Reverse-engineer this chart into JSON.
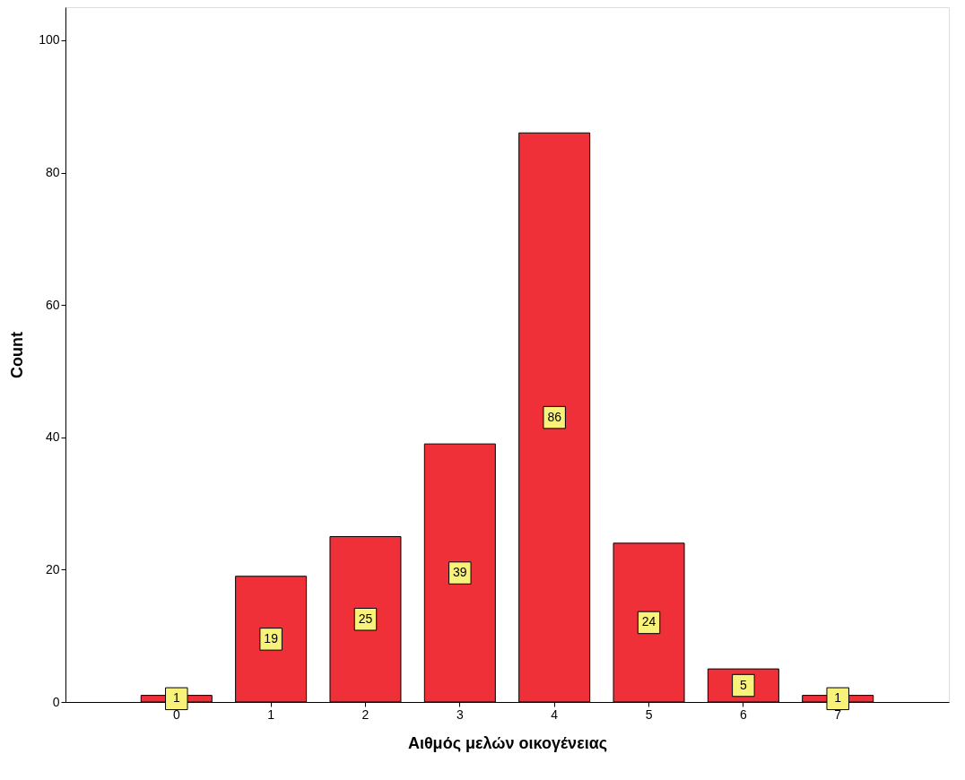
{
  "chart_data": {
    "type": "bar",
    "xlabel": "Αιθμός μελών οικογένειας",
    "ylabel": "Count",
    "categories": [
      "0",
      "1",
      "2",
      "3",
      "4",
      "5",
      "6",
      "7"
    ],
    "values": [
      1,
      19,
      25,
      39,
      86,
      24,
      5,
      1
    ],
    "color": "#ef3038",
    "ylim": [
      0,
      105
    ],
    "yticks": [
      0,
      20,
      40,
      60,
      80,
      100
    ],
    "grid": false,
    "data_labels": true
  }
}
